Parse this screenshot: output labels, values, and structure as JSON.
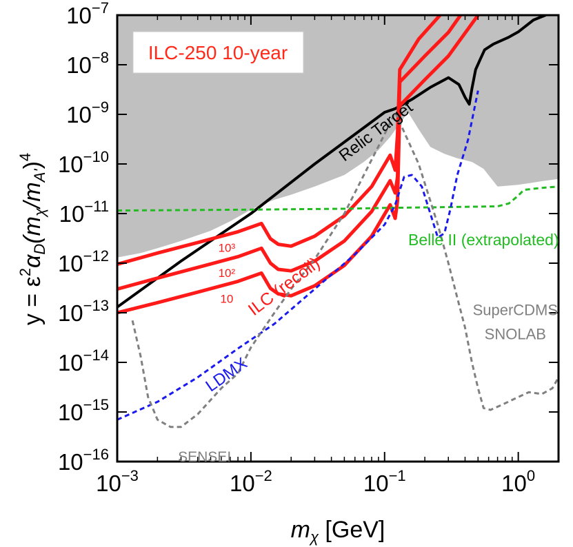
{
  "chart_data": {
    "type": "line",
    "x_scale": "log",
    "y_scale": "log",
    "xlim": [
      0.001,
      2.0
    ],
    "ylim": [
      1e-16,
      1e-07
    ],
    "xlabel": "m_χ [GeV]",
    "xlabel_text": {
      "main": "m",
      "sub": "χ",
      "unit": " [GeV]"
    },
    "ylabel": "y = ε²α_D(m_χ/m_A')⁴",
    "ylabel_text": {
      "prefix": "y = ε",
      "sq": "2",
      "alpha": "α",
      "alpha_sub": "D",
      "open": "(m",
      "chi": "χ",
      "slash": "/m",
      "aprime": "A'",
      "close": ")",
      "pow": "4"
    },
    "xticks": [
      {
        "value": 0.001,
        "base": "10",
        "exp": "−3"
      },
      {
        "value": 0.01,
        "base": "10",
        "exp": "−2"
      },
      {
        "value": 0.1,
        "base": "10",
        "exp": "−1"
      },
      {
        "value": 1.0,
        "base": "10",
        "exp": "0"
      }
    ],
    "yticks": [
      {
        "value": 1e-07,
        "base": "10",
        "exp": "−7"
      },
      {
        "value": 1e-08,
        "base": "10",
        "exp": "−8"
      },
      {
        "value": 1e-09,
        "base": "10",
        "exp": "−9"
      },
      {
        "value": 1e-10,
        "base": "10",
        "exp": "−10"
      },
      {
        "value": 1e-11,
        "base": "10",
        "exp": "−11"
      },
      {
        "value": 1e-12,
        "base": "10",
        "exp": "−12"
      },
      {
        "value": 1e-13,
        "base": "10",
        "exp": "−13"
      },
      {
        "value": 1e-14,
        "base": "10",
        "exp": "−14"
      },
      {
        "value": 1e-15,
        "base": "10",
        "exp": "−15"
      },
      {
        "value": 1e-16,
        "base": "10",
        "exp": "−16"
      }
    ],
    "title_box": {
      "text": "ILC-250 10-year",
      "color": "#ff2a1a"
    },
    "excluded_region": {
      "name": "existing constraints",
      "color": "#c0c0c0",
      "boundary": [
        [
          0.001,
          1.3e-12
        ],
        [
          0.0015,
          1.6e-12
        ],
        [
          0.002,
          2e-12
        ],
        [
          0.003,
          2.8e-12
        ],
        [
          0.005,
          4.5e-12
        ],
        [
          0.007,
          7e-12
        ],
        [
          0.01,
          1.2e-11
        ],
        [
          0.012,
          1.5e-11
        ],
        [
          0.015,
          1.9e-11
        ],
        [
          0.02,
          2.4e-11
        ],
        [
          0.03,
          3.5e-11
        ],
        [
          0.05,
          6e-11
        ],
        [
          0.07,
          1.1e-10
        ],
        [
          0.09,
          1.9e-10
        ],
        [
          0.11,
          3.5e-10
        ],
        [
          0.13,
          6.5e-10
        ],
        [
          0.15,
          1.1e-09
        ],
        [
          0.18,
          5e-10
        ],
        [
          0.22,
          2.2e-10
        ],
        [
          0.28,
          1.6e-10
        ],
        [
          0.35,
          1.3e-10
        ],
        [
          0.45,
          1.1e-10
        ],
        [
          0.55,
          8e-11
        ],
        [
          0.7,
          3.5e-11
        ],
        [
          1.0,
          3.8e-11
        ],
        [
          1.5,
          4.5e-11
        ],
        [
          2.0,
          5e-11
        ]
      ]
    },
    "series": [
      {
        "name": "Relic Target",
        "color": "#000000",
        "style": "solid",
        "width": 4,
        "points": [
          [
            0.001,
            1.3e-13
          ],
          [
            0.003,
            1.1e-12
          ],
          [
            0.01,
            1e-11
          ],
          [
            0.03,
            1e-10
          ],
          [
            0.1,
            1.1e-09
          ],
          [
            0.12,
            1.3e-09
          ],
          [
            0.16,
            2e-09
          ],
          [
            0.22,
            3.5e-09
          ],
          [
            0.3,
            5.5e-09
          ],
          [
            0.36,
            4e-09
          ],
          [
            0.4,
            2.2e-09
          ],
          [
            0.43,
            1.6e-09
          ],
          [
            0.45,
            3.3e-09
          ],
          [
            0.48,
            8e-09
          ],
          [
            0.52,
            1.3e-08
          ],
          [
            0.56,
            2e-08
          ],
          [
            0.65,
            2.6e-08
          ],
          [
            0.85,
            3.6e-08
          ],
          [
            1.0,
            4.6e-08
          ],
          [
            1.3,
            8e-08
          ],
          [
            1.6,
            1e-07
          ]
        ]
      },
      {
        "name": "ILC (recoil) 10",
        "color": "#ff1a1a",
        "style": "solid",
        "width": 5,
        "points": [
          [
            0.001,
            1e-13
          ],
          [
            0.002,
            1.6e-13
          ],
          [
            0.004,
            2.6e-13
          ],
          [
            0.008,
            4.3e-13
          ],
          [
            0.012,
            6.3e-13
          ],
          [
            0.014,
            3.1e-13
          ],
          [
            0.016,
            2.4e-13
          ],
          [
            0.02,
            2.2e-13
          ],
          [
            0.03,
            3.5e-13
          ],
          [
            0.05,
            9e-13
          ],
          [
            0.08,
            3.5e-12
          ],
          [
            0.11,
            1.5e-11
          ],
          [
            0.12,
            8e-12
          ],
          [
            0.125,
            1.8e-11
          ],
          [
            0.13,
            1.5e-09
          ],
          [
            0.2,
            5e-09
          ],
          [
            0.3,
            1.5e-08
          ],
          [
            0.5,
            1e-07
          ]
        ]
      },
      {
        "name": "ILC (recoil) 10²",
        "color": "#ff1a1a",
        "style": "solid",
        "width": 5,
        "points": [
          [
            0.001,
            3e-13
          ],
          [
            0.002,
            5e-13
          ],
          [
            0.004,
            8.2e-13
          ],
          [
            0.008,
            1.35e-12
          ],
          [
            0.012,
            2e-12
          ],
          [
            0.014,
            1e-12
          ],
          [
            0.016,
            7.5e-13
          ],
          [
            0.02,
            7e-13
          ],
          [
            0.03,
            1.1e-12
          ],
          [
            0.05,
            2.8e-12
          ],
          [
            0.08,
            1.1e-11
          ],
          [
            0.11,
            4.6e-11
          ],
          [
            0.12,
            2.6e-11
          ],
          [
            0.125,
            5.5e-11
          ],
          [
            0.13,
            4.5e-09
          ],
          [
            0.2,
            1.5e-08
          ],
          [
            0.3,
            4.5e-08
          ],
          [
            0.37,
            1e-07
          ]
        ]
      },
      {
        "name": "ILC (recoil) 10³",
        "color": "#ff1a1a",
        "style": "solid",
        "width": 5,
        "points": [
          [
            0.001,
            9.5e-13
          ],
          [
            0.002,
            1.6e-12
          ],
          [
            0.004,
            2.6e-12
          ],
          [
            0.008,
            4.3e-12
          ],
          [
            0.012,
            6.3e-12
          ],
          [
            0.014,
            3.1e-12
          ],
          [
            0.016,
            2.4e-12
          ],
          [
            0.02,
            2.2e-12
          ],
          [
            0.03,
            3.5e-12
          ],
          [
            0.05,
            9e-12
          ],
          [
            0.08,
            3.5e-11
          ],
          [
            0.11,
            1.5e-10
          ],
          [
            0.12,
            7.5e-11
          ],
          [
            0.125,
            4e-10
          ],
          [
            0.13,
            8e-09
          ],
          [
            0.18,
            3.3e-08
          ],
          [
            0.26,
            1e-07
          ]
        ]
      },
      {
        "name": "Belle II (extrapolated)",
        "color": "#22bb22",
        "style": "dashed",
        "width": 3,
        "points": [
          [
            0.001,
            1.15e-11
          ],
          [
            0.01,
            1.2e-11
          ],
          [
            0.05,
            1.25e-11
          ],
          [
            0.1,
            1.3e-11
          ],
          [
            0.3,
            1.35e-11
          ],
          [
            0.7,
            1.4e-11
          ],
          [
            0.85,
            1.6e-11
          ],
          [
            1.0,
            2.3e-11
          ],
          [
            1.1,
            3e-11
          ],
          [
            1.5,
            3.3e-11
          ],
          [
            2.0,
            3.5e-11
          ]
        ]
      },
      {
        "name": "LDMX",
        "color": "#1a1aee",
        "style": "dashed",
        "width": 3,
        "points": [
          [
            0.001,
            7e-16
          ],
          [
            0.002,
            1.6e-15
          ],
          [
            0.004,
            5e-15
          ],
          [
            0.008,
            1.9e-14
          ],
          [
            0.015,
            6e-14
          ],
          [
            0.03,
            3e-13
          ],
          [
            0.06,
            1.5e-12
          ],
          [
            0.1,
            6e-12
          ],
          [
            0.12,
            1.5e-11
          ],
          [
            0.14,
            5.5e-11
          ],
          [
            0.16,
            6e-11
          ],
          [
            0.19,
            3.5e-11
          ],
          [
            0.22,
            1e-11
          ],
          [
            0.25,
            3.3e-12
          ],
          [
            0.28,
            4e-12
          ],
          [
            0.31,
            1.2e-11
          ],
          [
            0.35,
            6e-11
          ],
          [
            0.42,
            3e-10
          ],
          [
            0.5,
            3e-09
          ]
        ]
      },
      {
        "name": "SENSEI / SuperCDMS SNOLAB",
        "color": "#808080",
        "style": "dashed",
        "width": 3,
        "points": [
          [
            0.0013,
            7e-14
          ],
          [
            0.0015,
            1.3e-14
          ],
          [
            0.0017,
            2e-15
          ],
          [
            0.002,
            7e-16
          ],
          [
            0.0025,
            5e-16
          ],
          [
            0.003,
            5e-16
          ],
          [
            0.004,
            9e-16
          ],
          [
            0.006,
            3e-15
          ],
          [
            0.008,
            6e-15
          ],
          [
            0.01,
            2e-14
          ],
          [
            0.015,
            1e-13
          ],
          [
            0.02,
            3e-13
          ],
          [
            0.03,
            1.2e-12
          ],
          [
            0.05,
            1e-11
          ],
          [
            0.07,
            6e-11
          ],
          [
            0.1,
            4e-10
          ],
          [
            0.12,
            1.1e-09
          ],
          [
            0.18,
            1e-10
          ],
          [
            0.25,
            6e-12
          ],
          [
            0.3,
            1e-12
          ],
          [
            0.35,
            2e-13
          ],
          [
            0.4,
            5e-14
          ],
          [
            0.45,
            1e-14
          ],
          [
            0.5,
            3e-15
          ],
          [
            0.55,
            1.2e-15
          ],
          [
            0.62,
            1.1e-15
          ],
          [
            0.8,
            1.5e-15
          ],
          [
            1.0,
            2e-15
          ],
          [
            1.2,
            2.5e-15
          ],
          [
            1.5,
            2.3e-15
          ],
          [
            1.8,
            3e-15
          ],
          [
            2.0,
            5e-15
          ]
        ]
      }
    ],
    "annotations": [
      {
        "name": "relic-target-label",
        "text": "Relic Target",
        "x": 0.05,
        "y": 1.1e-10,
        "color": "#000000",
        "size": 24,
        "rotate": -37
      },
      {
        "name": "belle-label",
        "text": "Belle II (extrapolated)",
        "x": 0.55,
        "y": 2.3e-12,
        "color": "#22bb22",
        "size": 23,
        "rotate": 0,
        "anchor": "middle"
      },
      {
        "name": "ilc-recoil-label",
        "text": "ILC (recoil)",
        "x": 0.0105,
        "y": 8.5e-14,
        "color": "#ff1a1a",
        "size": 25,
        "rotate": -37
      },
      {
        "name": "ldmx-label",
        "text": "LDMX",
        "x": 0.005,
        "y": 2.5e-15,
        "color": "#1a1aee",
        "size": 24,
        "rotate": -35
      },
      {
        "name": "sensei-label",
        "text": "SENSEI",
        "x": 0.0045,
        "y": 1e-16,
        "color": "#808080",
        "size": 21,
        "rotate": 0,
        "anchor": "middle"
      },
      {
        "name": "supercdms-label",
        "text": "SuperCDMS",
        "x": 0.95,
        "y": 9e-14,
        "color": "#808080",
        "size": 22,
        "rotate": 0,
        "anchor": "middle"
      },
      {
        "name": "snolab-label",
        "text": "SNOLAB",
        "x": 0.95,
        "y": 2.9e-14,
        "color": "#808080",
        "size": 22,
        "rotate": 0,
        "anchor": "middle"
      },
      {
        "name": "curve-label-1e3",
        "text": "10³",
        "x": 0.0066,
        "y": 1.7e-12,
        "color": "#ff1a1a",
        "size": 17,
        "rotate": 0,
        "anchor": "middle"
      },
      {
        "name": "curve-label-1e2",
        "text": "10²",
        "x": 0.0066,
        "y": 5.3e-13,
        "color": "#ff1a1a",
        "size": 17,
        "rotate": 0,
        "anchor": "middle"
      },
      {
        "name": "curve-label-10",
        "text": "10",
        "x": 0.0066,
        "y": 1.6e-13,
        "color": "#ff1a1a",
        "size": 17,
        "rotate": 0,
        "anchor": "middle"
      }
    ]
  }
}
